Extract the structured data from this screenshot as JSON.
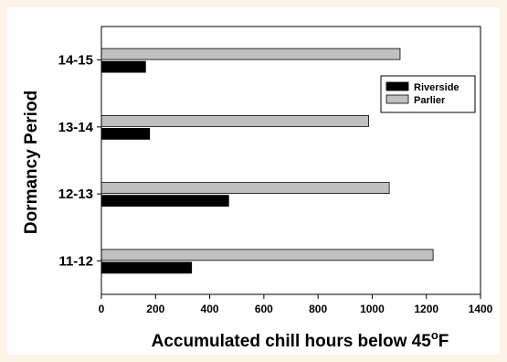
{
  "chart_data": {
    "type": "bar",
    "orientation": "horizontal",
    "categories": [
      "11-12",
      "12-13",
      "13-14",
      "14-15"
    ],
    "series": [
      {
        "name": "Riverside",
        "color": "#000000",
        "values": [
          333,
          470,
          178,
          163
        ]
      },
      {
        "name": "Parlier",
        "color": "#c0c0c0",
        "values": [
          1225,
          1063,
          987,
          1103
        ]
      }
    ],
    "xlabel_main": "Accumulated chill hours below 45",
    "xlabel_sup": "o",
    "xlabel_tail": "F",
    "ylabel": "Dormancy Period",
    "xlim": [
      0,
      1400
    ],
    "xticks": [
      "0",
      "200",
      "400",
      "600",
      "800",
      "1000",
      "1200",
      "1400"
    ],
    "legend_position": "top-right",
    "grid": false
  }
}
